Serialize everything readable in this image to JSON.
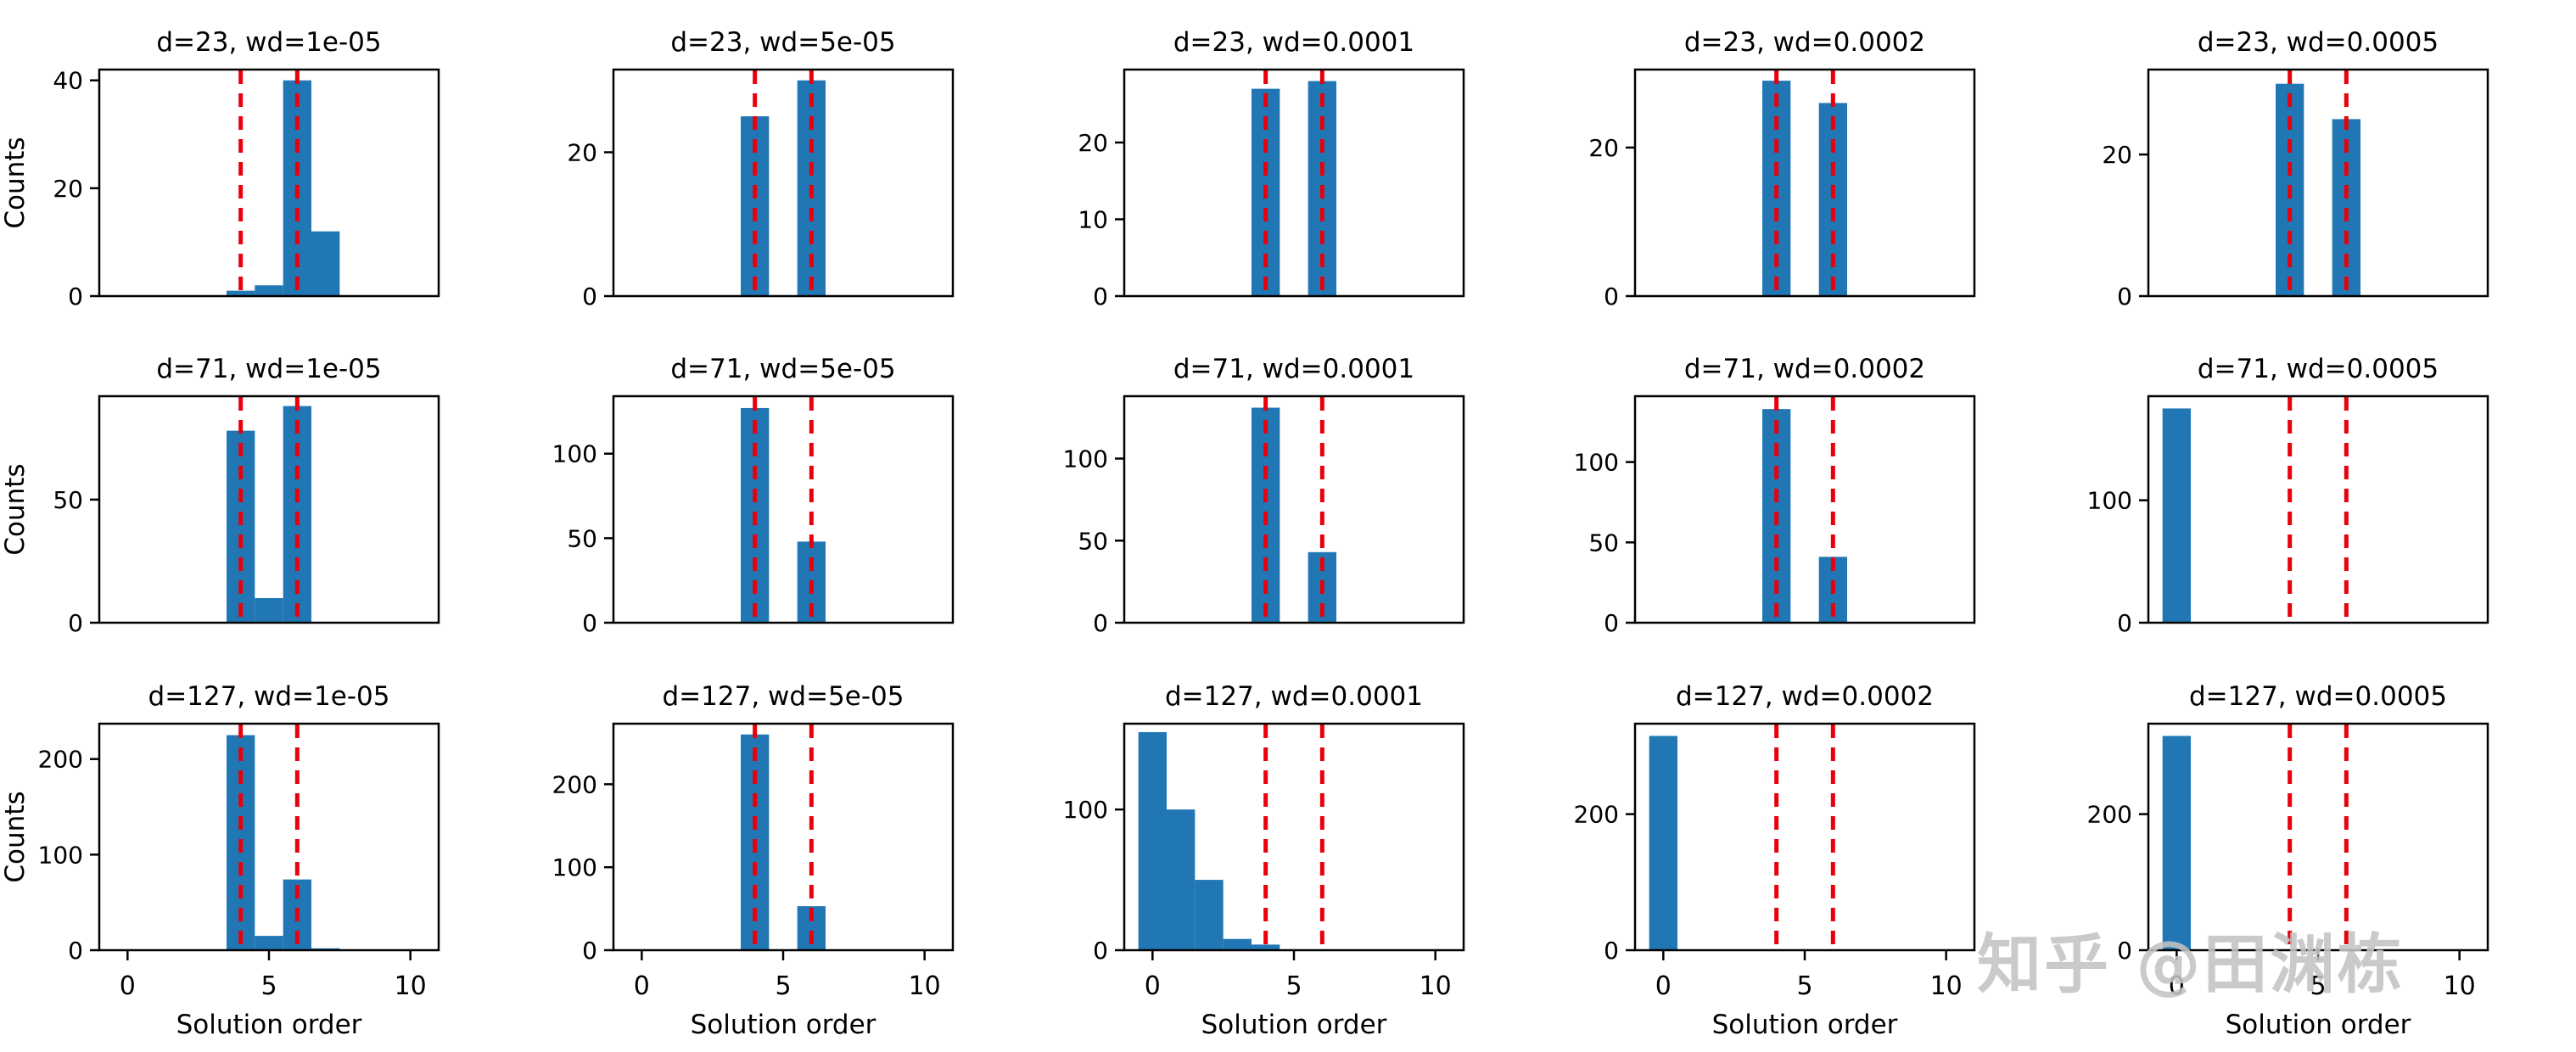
{
  "watermark": {
    "text": "知乎 @田渊栋"
  },
  "style": {
    "bar_color": "#2077b4",
    "vline_color": "#e8000b",
    "axis_color": "#000000",
    "text_color": "#000000",
    "background": "#ffffff"
  },
  "chart_data": [
    {
      "type": "bar",
      "row": 0,
      "col": 0,
      "title": "d=23, wd=1e-05",
      "ylabel": "Counts",
      "xlabel": "",
      "xlim": [
        -1,
        11
      ],
      "ylim": [
        0,
        42
      ],
      "xticks": [
        0,
        5,
        10
      ],
      "yticks": [
        0,
        20,
        40
      ],
      "show_x_tick_labels": false,
      "bin_width": 1,
      "vlines": [
        4,
        6
      ],
      "bins": [
        {
          "x": 4,
          "count": 1
        },
        {
          "x": 5,
          "count": 2
        },
        {
          "x": 6,
          "count": 40
        },
        {
          "x": 7,
          "count": 12
        }
      ]
    },
    {
      "type": "bar",
      "row": 0,
      "col": 1,
      "title": "d=23, wd=5e-05",
      "ylabel": "",
      "xlabel": "",
      "xlim": [
        -1,
        11
      ],
      "ylim": [
        0,
        31.5
      ],
      "xticks": [
        0,
        5,
        10
      ],
      "yticks": [
        0,
        20
      ],
      "show_x_tick_labels": false,
      "bin_width": 1,
      "vlines": [
        4,
        6
      ],
      "bins": [
        {
          "x": 4,
          "count": 25
        },
        {
          "x": 6,
          "count": 30
        }
      ]
    },
    {
      "type": "bar",
      "row": 0,
      "col": 2,
      "title": "d=23, wd=0.0001",
      "ylabel": "",
      "xlabel": "",
      "xlim": [
        -1,
        11
      ],
      "ylim": [
        0,
        29.5
      ],
      "xticks": [
        0,
        5,
        10
      ],
      "yticks": [
        0,
        10,
        20
      ],
      "show_x_tick_labels": false,
      "bin_width": 1,
      "vlines": [
        4,
        6
      ],
      "bins": [
        {
          "x": 4,
          "count": 27
        },
        {
          "x": 6,
          "count": 28
        }
      ]
    },
    {
      "type": "bar",
      "row": 0,
      "col": 3,
      "title": "d=23, wd=0.0002",
      "ylabel": "",
      "xlabel": "",
      "xlim": [
        -1,
        11
      ],
      "ylim": [
        0,
        30.5
      ],
      "xticks": [
        0,
        5,
        10
      ],
      "yticks": [
        0,
        20
      ],
      "show_x_tick_labels": false,
      "bin_width": 1,
      "vlines": [
        4,
        6
      ],
      "bins": [
        {
          "x": 4,
          "count": 29
        },
        {
          "x": 6,
          "count": 26
        }
      ]
    },
    {
      "type": "bar",
      "row": 0,
      "col": 4,
      "title": "d=23, wd=0.0005",
      "ylabel": "",
      "xlabel": "",
      "xlim": [
        -1,
        11
      ],
      "ylim": [
        0,
        32
      ],
      "xticks": [
        0,
        5,
        10
      ],
      "yticks": [
        0,
        20
      ],
      "show_x_tick_labels": false,
      "bin_width": 1,
      "vlines": [
        4,
        6
      ],
      "bins": [
        {
          "x": 4,
          "count": 30
        },
        {
          "x": 6,
          "count": 25
        }
      ]
    },
    {
      "type": "bar",
      "row": 1,
      "col": 0,
      "title": "d=71, wd=1e-05",
      "ylabel": "Counts",
      "xlabel": "",
      "xlim": [
        -1,
        11
      ],
      "ylim": [
        0,
        92
      ],
      "xticks": [
        0,
        5,
        10
      ],
      "yticks": [
        0,
        50
      ],
      "show_x_tick_labels": false,
      "bin_width": 1,
      "vlines": [
        4,
        6
      ],
      "bins": [
        {
          "x": 4,
          "count": 78
        },
        {
          "x": 5,
          "count": 10
        },
        {
          "x": 6,
          "count": 88
        }
      ]
    },
    {
      "type": "bar",
      "row": 1,
      "col": 1,
      "title": "d=71, wd=5e-05",
      "ylabel": "",
      "xlabel": "",
      "xlim": [
        -1,
        11
      ],
      "ylim": [
        0,
        134
      ],
      "xticks": [
        0,
        5,
        10
      ],
      "yticks": [
        0,
        50,
        100
      ],
      "show_x_tick_labels": false,
      "bin_width": 1,
      "vlines": [
        4,
        6
      ],
      "bins": [
        {
          "x": 4,
          "count": 127
        },
        {
          "x": 6,
          "count": 48
        }
      ]
    },
    {
      "type": "bar",
      "row": 1,
      "col": 2,
      "title": "d=71, wd=0.0001",
      "ylabel": "",
      "xlabel": "",
      "xlim": [
        -1,
        11
      ],
      "ylim": [
        0,
        138
      ],
      "xticks": [
        0,
        5,
        10
      ],
      "yticks": [
        0,
        50,
        100
      ],
      "show_x_tick_labels": false,
      "bin_width": 1,
      "vlines": [
        4,
        6
      ],
      "bins": [
        {
          "x": 4,
          "count": 131
        },
        {
          "x": 6,
          "count": 43
        }
      ]
    },
    {
      "type": "bar",
      "row": 1,
      "col": 3,
      "title": "d=71, wd=0.0002",
      "ylabel": "",
      "xlabel": "",
      "xlim": [
        -1,
        11
      ],
      "ylim": [
        0,
        141
      ],
      "xticks": [
        0,
        5,
        10
      ],
      "yticks": [
        0,
        50,
        100
      ],
      "show_x_tick_labels": false,
      "bin_width": 1,
      "vlines": [
        4,
        6
      ],
      "bins": [
        {
          "x": 4,
          "count": 133
        },
        {
          "x": 6,
          "count": 41
        }
      ]
    },
    {
      "type": "bar",
      "row": 1,
      "col": 4,
      "title": "d=71, wd=0.0005",
      "ylabel": "",
      "xlabel": "",
      "xlim": [
        -1,
        11
      ],
      "ylim": [
        0,
        185
      ],
      "xticks": [
        0,
        5,
        10
      ],
      "yticks": [
        0,
        100
      ],
      "show_x_tick_labels": false,
      "bin_width": 1,
      "vlines": [
        4,
        6
      ],
      "bins": [
        {
          "x": 0,
          "count": 175
        }
      ]
    },
    {
      "type": "bar",
      "row": 2,
      "col": 0,
      "title": "d=127, wd=1e-05",
      "ylabel": "Counts",
      "xlabel": "Solution order",
      "xlim": [
        -1,
        11
      ],
      "ylim": [
        0,
        237
      ],
      "xticks": [
        0,
        5,
        10
      ],
      "yticks": [
        0,
        100,
        200
      ],
      "show_x_tick_labels": true,
      "bin_width": 1,
      "vlines": [
        4,
        6
      ],
      "bins": [
        {
          "x": 4,
          "count": 225
        },
        {
          "x": 5,
          "count": 15
        },
        {
          "x": 6,
          "count": 74
        },
        {
          "x": 7,
          "count": 2
        }
      ]
    },
    {
      "type": "bar",
      "row": 2,
      "col": 1,
      "title": "d=127, wd=5e-05",
      "ylabel": "",
      "xlabel": "Solution order",
      "xlim": [
        -1,
        11
      ],
      "ylim": [
        0,
        273
      ],
      "xticks": [
        0,
        5,
        10
      ],
      "yticks": [
        0,
        100,
        200
      ],
      "show_x_tick_labels": true,
      "bin_width": 1,
      "vlines": [
        4,
        6
      ],
      "bins": [
        {
          "x": 4,
          "count": 260
        },
        {
          "x": 6,
          "count": 53
        }
      ]
    },
    {
      "type": "bar",
      "row": 2,
      "col": 2,
      "title": "d=127, wd=0.0001",
      "ylabel": "",
      "xlabel": "Solution order",
      "xlim": [
        -1,
        11
      ],
      "ylim": [
        0,
        161
      ],
      "xticks": [
        0,
        5,
        10
      ],
      "yticks": [
        0,
        100
      ],
      "show_x_tick_labels": true,
      "bin_width": 1,
      "vlines": [
        4,
        6
      ],
      "bins": [
        {
          "x": 0,
          "count": 155
        },
        {
          "x": 1,
          "count": 100
        },
        {
          "x": 2,
          "count": 50
        },
        {
          "x": 3,
          "count": 8
        },
        {
          "x": 4,
          "count": 4
        }
      ]
    },
    {
      "type": "bar",
      "row": 2,
      "col": 3,
      "title": "d=127, wd=0.0002",
      "ylabel": "",
      "xlabel": "Solution order",
      "xlim": [
        -1,
        11
      ],
      "ylim": [
        0,
        333
      ],
      "xticks": [
        0,
        5,
        10
      ],
      "yticks": [
        0,
        200
      ],
      "show_x_tick_labels": true,
      "bin_width": 1,
      "vlines": [
        4,
        6
      ],
      "bins": [
        {
          "x": 0,
          "count": 315
        }
      ]
    },
    {
      "type": "bar",
      "row": 2,
      "col": 4,
      "title": "d=127, wd=0.0005",
      "ylabel": "",
      "xlabel": "Solution order",
      "xlim": [
        -1,
        11
      ],
      "ylim": [
        0,
        333
      ],
      "xticks": [
        0,
        5,
        10
      ],
      "yticks": [
        0,
        200
      ],
      "show_x_tick_labels": true,
      "bin_width": 1,
      "vlines": [
        4,
        6
      ],
      "bins": [
        {
          "x": 0,
          "count": 315
        }
      ]
    }
  ]
}
